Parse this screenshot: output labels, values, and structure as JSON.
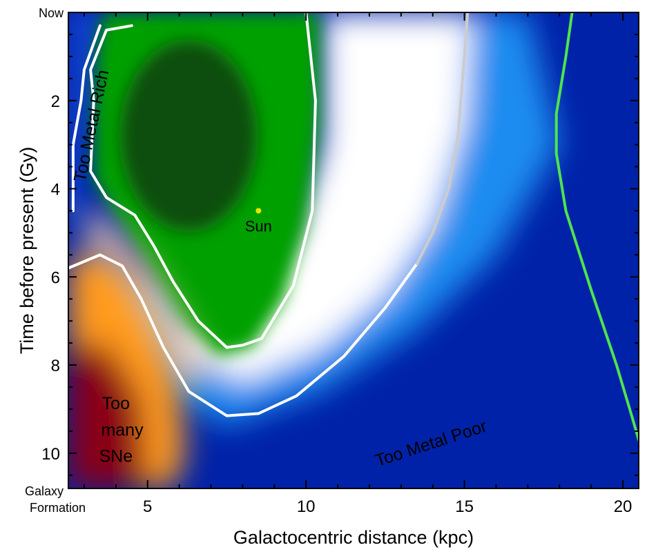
{
  "chart_data": {
    "type": "heatmap",
    "title": "",
    "xlabel": "Galactocentric distance (kpc)",
    "ylabel": "Time before present (Gy)",
    "xlim": [
      2.5,
      20.5
    ],
    "ylim": [
      0,
      10.8
    ],
    "y_inverted": true,
    "x_ticks": [
      5,
      10,
      15,
      20
    ],
    "x_tick_labels": [
      "5",
      "10",
      "15",
      "20"
    ],
    "y_ticks": [
      2,
      4,
      6,
      8,
      10
    ],
    "y_tick_labels": [
      "2",
      "4",
      "6",
      "8",
      "10"
    ],
    "y_end_labels": {
      "top": "Now",
      "bottom_line1": "Galaxy",
      "bottom_line2": "Formation"
    },
    "regions": [
      {
        "label": "Too Metal Rich",
        "color": "#1aa8e8",
        "x": 3.4,
        "y": 2.6,
        "rotate": -78
      },
      {
        "label": "Too Metal Poor",
        "color": "#29a9ee",
        "x": 14.0,
        "y": 9.9,
        "rotate": -18
      },
      {
        "label": "Too",
        "color": "#ff9a1a",
        "x": 4.0,
        "y": 9.0,
        "rotate": 0
      },
      {
        "label": "many",
        "color": "#ff9a1a",
        "x": 4.2,
        "y": 9.6,
        "rotate": 0
      },
      {
        "label": "SNe",
        "color": "#ff9a1a",
        "x": 4.0,
        "y": 10.2,
        "rotate": 0
      }
    ],
    "sun": {
      "label": "Sun",
      "x": 8.5,
      "y": 4.5,
      "color": "#e6e600"
    },
    "contours": [
      {
        "name": "ghz-core-boundary",
        "color": "#ffffff",
        "points": [
          [
            4.5,
            0.3
          ],
          [
            3.7,
            0.4
          ],
          [
            3.2,
            1.3
          ],
          [
            3.3,
            2.0
          ],
          [
            3.2,
            3.6
          ],
          [
            3.7,
            4.2
          ],
          [
            4.6,
            4.6
          ],
          [
            5.2,
            5.3
          ],
          [
            5.8,
            6.1
          ],
          [
            6.6,
            7.0
          ],
          [
            7.5,
            7.6
          ],
          [
            8.0,
            7.55
          ],
          [
            8.6,
            7.4
          ],
          [
            9.6,
            6.2
          ],
          [
            10.2,
            4.5
          ],
          [
            10.3,
            2.0
          ],
          [
            10.0,
            0.0
          ]
        ]
      },
      {
        "name": "metal-rich-boundary",
        "color": "#ffffff",
        "points": [
          [
            2.65,
            4.5
          ],
          [
            2.65,
            3.0
          ],
          [
            2.9,
            2.0
          ],
          [
            3.0,
            1.3
          ],
          [
            3.3,
            0.7
          ],
          [
            3.5,
            0.3
          ]
        ]
      },
      {
        "name": "ghz-outer-boundary",
        "color": "#ffffff",
        "points": [
          [
            2.5,
            5.8
          ],
          [
            3.5,
            5.5
          ],
          [
            4.2,
            5.75
          ],
          [
            4.8,
            6.5
          ],
          [
            5.5,
            7.6
          ],
          [
            6.3,
            8.6
          ],
          [
            7.5,
            9.15
          ],
          [
            8.5,
            9.1
          ],
          [
            9.7,
            8.7
          ],
          [
            11.2,
            7.8
          ],
          [
            12.5,
            6.7
          ],
          [
            13.5,
            5.7
          ]
        ]
      },
      {
        "name": "gray-boundary",
        "color": "#cccccc",
        "points": [
          [
            13.5,
            5.7
          ],
          [
            14.0,
            5.0
          ],
          [
            14.5,
            4.0
          ],
          [
            14.8,
            2.8
          ],
          [
            15.0,
            1.0
          ],
          [
            15.1,
            0.0
          ]
        ]
      },
      {
        "name": "green-boundary",
        "color": "#4ee44e",
        "points": [
          [
            18.4,
            0.0
          ],
          [
            18.2,
            1.0
          ],
          [
            17.9,
            2.3
          ],
          [
            17.9,
            3.2
          ],
          [
            18.2,
            4.5
          ],
          [
            19.0,
            6.3
          ],
          [
            19.8,
            8.0
          ],
          [
            20.3,
            9.2
          ],
          [
            20.5,
            9.7
          ]
        ]
      }
    ],
    "colors": {
      "green": "#00a000",
      "dark_green": "#0c3a0c",
      "blue": "#0022a8",
      "light_blue": "#1a8cf0",
      "orange": "#ff9a1a",
      "red": "#8a0016",
      "white": "#ffffff"
    },
    "grid": false,
    "legend": "none"
  }
}
